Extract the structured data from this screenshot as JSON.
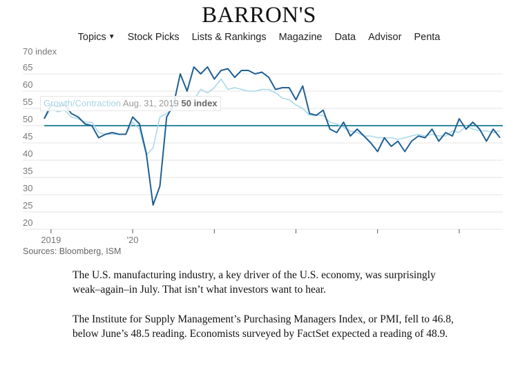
{
  "header": {
    "logo": "BARRON'S",
    "nav": [
      "Topics",
      "Stock Picks",
      "Lists & Rankings",
      "Magazine",
      "Data",
      "Advisor",
      "Penta"
    ]
  },
  "tooltip": {
    "series": "Growth/Contraction",
    "date": "Aug. 31, 2019",
    "value": "50 index"
  },
  "source": "Sources: Bloomberg, ISM",
  "article": [
    "The U.S. manufacturing industry, a key driver of the U.S. economy, was surprisingly weak–again–in July. That isn’t what investors want to hear.",
    "The Institute for Supply Management’s Purchasing Managers Index, or PMI, fell to 46.8, below June’s 48.5 reading. Economists surveyed by FactSet expected a reading of 48.9."
  ],
  "colors": {
    "dark": "#1f5f93",
    "light": "#a9d8e8",
    "ref": "#2e8b9a"
  },
  "chart_data": {
    "type": "line",
    "ylabel": "70 index",
    "yticks": [
      65,
      60,
      55,
      50,
      45,
      40,
      35,
      30,
      25,
      20
    ],
    "ylim": [
      20,
      70
    ],
    "xticks": [
      {
        "label": "2019",
        "index": 1
      },
      {
        "label": "'20",
        "index": 13
      },
      {
        "label": "",
        "index": 25
      },
      {
        "label": "",
        "index": 37
      },
      {
        "label": "",
        "index": 49
      },
      {
        "label": "",
        "index": 61
      }
    ],
    "reference": {
      "name": "Growth/Contraction",
      "value": 50
    },
    "series": [
      {
        "name": "dark",
        "values": [
          52,
          56,
          55.5,
          56,
          53.5,
          52.5,
          50.5,
          50,
          46.5,
          47.5,
          48,
          47.5,
          47.5,
          52.5,
          50.5,
          42,
          27,
          32.5,
          52.5,
          56,
          65,
          60,
          67,
          65,
          67,
          63.5,
          66,
          66.5,
          64,
          66,
          66,
          65,
          65.5,
          64,
          60.5,
          61,
          61,
          57.5,
          61.5,
          53.5,
          53,
          54.5,
          49,
          48,
          51,
          47,
          49,
          47,
          45,
          42.5,
          46.5,
          44,
          45.5,
          42.5,
          45.5,
          47,
          46.5,
          49,
          45.5,
          48,
          47,
          52,
          49,
          51,
          49,
          45.5,
          49,
          46.5
        ]
      },
      {
        "name": "light",
        "values": [
          52,
          55,
          54,
          54.5,
          52.5,
          52,
          51,
          51,
          48,
          47.5,
          47.5,
          47.5,
          47.5,
          51,
          49,
          41.5,
          43.5,
          52.5,
          53.5,
          55,
          56,
          58.5,
          57.5,
          60.5,
          59.5,
          61,
          63.5,
          60.5,
          61,
          60.5,
          60,
          60,
          60.5,
          60.5,
          59.5,
          58,
          57.5,
          56,
          55,
          53,
          53,
          53,
          51,
          50.5,
          49.5,
          48.5,
          48,
          47,
          47,
          46.5,
          46.5,
          46.5,
          46,
          46.5,
          47,
          47.5,
          47,
          47.5,
          47,
          47,
          48.5,
          48,
          50,
          49,
          48.5,
          48.5,
          48,
          48.5
        ]
      }
    ]
  }
}
